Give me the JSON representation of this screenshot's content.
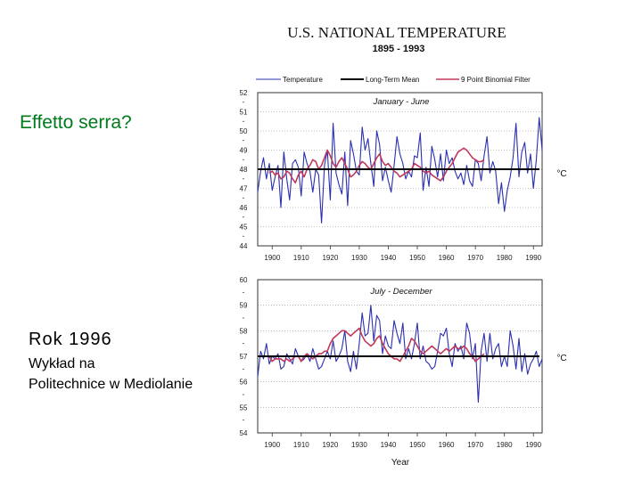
{
  "slide": {
    "title": "Effetto serra?",
    "year_line": "Rok 1996",
    "lecture_line1": "Wykład na",
    "lecture_line2": "Politechnice w Mediolanie"
  },
  "colors": {
    "temperature": "#2a2fb0",
    "mean": "#000000",
    "filter": "#c0385a",
    "title_green": "#007a1a"
  },
  "figure": {
    "title": "U.S. NATIONAL TEMPERATURE",
    "subtitle": "1895 - 1993",
    "legend": [
      "Temperature",
      "Long-Term Mean",
      "9 Point Binomial Filter"
    ],
    "x_axis_label": "Year",
    "unit_label": "°C"
  },
  "chart_data": [
    {
      "type": "line",
      "title": "January - June",
      "x_start": 1895,
      "x_end": 1993,
      "xticks": [
        1900,
        1910,
        1920,
        1930,
        1940,
        1950,
        1960,
        1970,
        1980,
        1990
      ],
      "yticks": [
        44,
        45,
        46,
        47,
        48,
        49,
        50,
        51,
        52
      ],
      "ylim": [
        44,
        52
      ],
      "long_term_mean": 48.0,
      "series": [
        {
          "name": "Temperature",
          "x_start": 1895,
          "values": [
            46.8,
            47.9,
            48.6,
            47.5,
            48.3,
            46.9,
            47.6,
            48.2,
            46.0,
            48.9,
            47.5,
            46.4,
            48.3,
            48.5,
            48.1,
            46.6,
            48.9,
            48.3,
            47.9,
            46.8,
            48.0,
            47.7,
            45.2,
            48.2,
            49.0,
            46.4,
            50.4,
            47.8,
            47.2,
            46.7,
            48.9,
            46.1,
            49.5,
            48.8,
            47.9,
            47.7,
            50.2,
            49.0,
            49.6,
            48.3,
            47.1,
            50.0,
            49.3,
            47.4,
            48.1,
            47.4,
            46.8,
            48.2,
            49.7,
            48.8,
            48.3,
            47.5,
            47.9,
            47.6,
            48.7,
            48.6,
            49.9,
            46.9,
            48.1,
            47.1,
            49.2,
            48.5,
            47.6,
            48.8,
            47.4,
            49.0,
            48.3,
            48.6,
            47.9,
            47.5,
            47.8,
            47.2,
            48.2,
            47.4,
            47.1,
            48.5,
            48.3,
            47.4,
            48.7,
            49.7,
            47.8,
            48.4,
            47.9,
            46.2,
            47.3,
            45.8,
            46.9,
            47.6,
            48.6,
            50.4,
            47.6,
            48.9,
            49.4,
            47.8,
            48.8,
            47.0,
            48.5,
            50.7,
            49.0
          ]
        },
        {
          "name": "9 Point Binomial Filter",
          "x_start": 1899,
          "values": [
            47.8,
            47.9,
            47.7,
            47.8,
            47.5,
            47.6,
            47.9,
            47.8,
            47.5,
            47.3,
            47.7,
            47.9,
            47.6,
            48.0,
            48.2,
            48.5,
            48.4,
            48.0,
            48.2,
            48.6,
            49.0,
            48.7,
            48.3,
            48.1,
            48.4,
            48.6,
            48.3,
            48.0,
            47.6,
            47.7,
            47.9,
            48.2,
            48.4,
            48.3,
            48.1,
            48.0,
            48.3,
            48.6,
            48.8,
            48.4,
            48.2,
            48.3,
            48.1,
            47.9,
            47.8,
            47.6,
            47.7,
            47.8,
            47.9,
            48.0,
            48.3,
            48.2,
            48.1,
            47.9,
            47.8,
            47.9,
            47.7,
            47.6,
            47.5,
            47.4,
            47.6,
            47.9,
            48.1,
            48.3,
            48.6,
            48.9,
            49.0,
            49.1,
            49.0,
            48.8,
            48.6,
            48.5,
            48.4,
            48.4,
            48.5
          ]
        },
        {
          "name": "Long-Term Mean",
          "values": [
            48.0,
            48.0
          ]
        }
      ]
    },
    {
      "type": "line",
      "title": "July - December",
      "x_start": 1895,
      "x_end": 1993,
      "xticks": [
        1900,
        1910,
        1920,
        1930,
        1940,
        1950,
        1960,
        1970,
        1980,
        1990
      ],
      "yticks": [
        54,
        55,
        56,
        57,
        58,
        59,
        60
      ],
      "ylim": [
        54,
        60
      ],
      "long_term_mean": 57.0,
      "series": [
        {
          "name": "Temperature",
          "x_start": 1895,
          "values": [
            56.2,
            57.2,
            56.9,
            57.5,
            56.7,
            57.0,
            56.9,
            57.1,
            56.5,
            56.6,
            57.1,
            56.9,
            56.7,
            57.3,
            57.0,
            56.8,
            56.9,
            57.1,
            56.8,
            57.3,
            56.9,
            56.5,
            56.6,
            56.9,
            57.2,
            56.9,
            57.6,
            56.8,
            57.0,
            57.3,
            58.0,
            56.8,
            56.4,
            57.2,
            56.5,
            57.5,
            58.7,
            57.8,
            57.9,
            59.0,
            57.6,
            58.6,
            58.4,
            57.1,
            57.8,
            57.4,
            57.3,
            58.4,
            57.9,
            57.5,
            58.3,
            56.9,
            57.3,
            56.9,
            57.5,
            58.3,
            56.9,
            57.4,
            56.8,
            56.7,
            56.5,
            56.6,
            57.2,
            57.9,
            57.8,
            58.1,
            57.1,
            56.6,
            57.5,
            57.2,
            57.4,
            56.9,
            58.3,
            57.9,
            56.9,
            57.5,
            55.2,
            57.2,
            57.9,
            56.8,
            57.9,
            56.9,
            57.3,
            57.5,
            56.6,
            57.0,
            56.6,
            58.0,
            57.4,
            56.5,
            57.7,
            56.4,
            57.1,
            56.3,
            56.7,
            56.9,
            57.2,
            56.6,
            56.9
          ]
        },
        {
          "name": "9 Point Binomial Filter",
          "x_start": 1899,
          "values": [
            57.0,
            56.8,
            56.9,
            56.9,
            56.9,
            56.8,
            56.9,
            56.8,
            56.9,
            57.0,
            57.0,
            56.8,
            57.0,
            57.1,
            57.0,
            56.9,
            57.0,
            57.1,
            57.1,
            57.2,
            57.2,
            57.5,
            57.7,
            57.8,
            57.9,
            58.0,
            58.0,
            57.9,
            57.8,
            57.9,
            58.0,
            58.1,
            57.8,
            57.6,
            57.5,
            57.4,
            57.5,
            57.7,
            57.8,
            57.5,
            57.3,
            57.1,
            57.0,
            56.9,
            56.9,
            56.8,
            57.0,
            57.2,
            57.4,
            57.7,
            57.6,
            57.4,
            57.2,
            57.1,
            57.2,
            57.3,
            57.4,
            57.3,
            57.2,
            57.1,
            57.2,
            57.3,
            57.2,
            57.3,
            57.4,
            57.3,
            57.3,
            57.4,
            57.3,
            57.1,
            57.0,
            56.8,
            56.9,
            57.0,
            57.1
          ]
        },
        {
          "name": "Long-Term Mean",
          "values": [
            57.0,
            57.0
          ]
        }
      ]
    }
  ]
}
